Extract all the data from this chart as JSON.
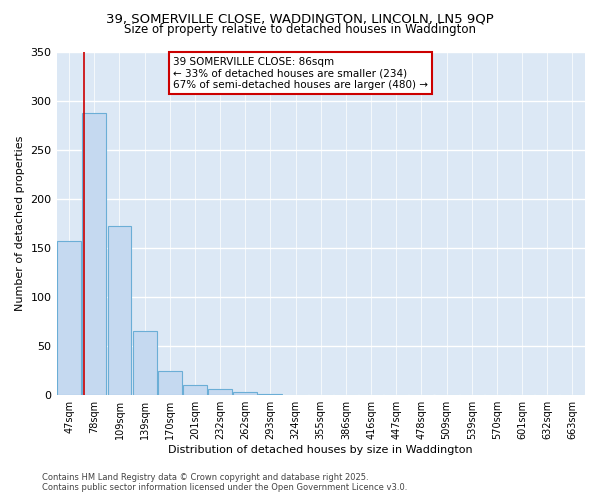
{
  "title_line1": "39, SOMERVILLE CLOSE, WADDINGTON, LINCOLN, LN5 9QP",
  "title_line2": "Size of property relative to detached houses in Waddington",
  "xlabel": "Distribution of detached houses by size in Waddington",
  "ylabel": "Number of detached properties",
  "bar_labels": [
    "47sqm",
    "78sqm",
    "109sqm",
    "139sqm",
    "170sqm",
    "201sqm",
    "232sqm",
    "262sqm",
    "293sqm",
    "324sqm",
    "355sqm",
    "386sqm",
    "416sqm",
    "447sqm",
    "478sqm",
    "509sqm",
    "539sqm",
    "570sqm",
    "601sqm",
    "632sqm",
    "663sqm"
  ],
  "bar_values": [
    157,
    287,
    172,
    65,
    25,
    10,
    6,
    3,
    1,
    0,
    0,
    0,
    0,
    0,
    0,
    0,
    0,
    0,
    0,
    0,
    0
  ],
  "bar_color": "#c5d9f0",
  "bar_edge_color": "#6baed6",
  "fig_background_color": "#ffffff",
  "axes_background_color": "#dce8f5",
  "grid_color": "#ffffff",
  "annotation_text": "39 SOMERVILLE CLOSE: 86sqm\n← 33% of detached houses are smaller (234)\n67% of semi-detached houses are larger (480) →",
  "vline_x": 0.6,
  "vline_color": "#cc0000",
  "annotation_box_edge_color": "#cc0000",
  "ylim": [
    0,
    350
  ],
  "yticks": [
    0,
    50,
    100,
    150,
    200,
    250,
    300,
    350
  ],
  "footer_line1": "Contains HM Land Registry data © Crown copyright and database right 2025.",
  "footer_line2": "Contains public sector information licensed under the Open Government Licence v3.0."
}
